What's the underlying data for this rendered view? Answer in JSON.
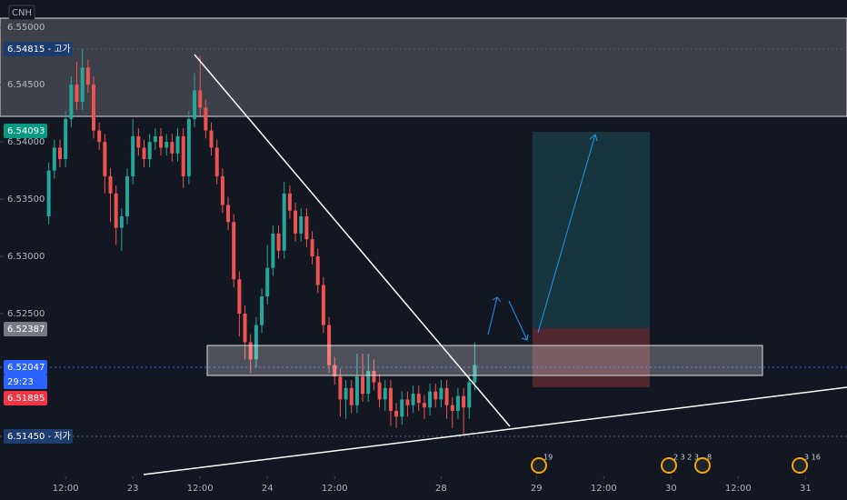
{
  "chart_data": {
    "type": "candlestick",
    "symbol": "CNH",
    "open": [
      6.5335,
      6.5375,
      6.5395,
      6.5385,
      6.542,
      6.545,
      6.5435,
      6.5465,
      6.545,
      6.541,
      6.54,
      6.537,
      6.5355,
      6.5325,
      6.5335,
      6.537,
      6.5405,
      6.5395,
      6.5385,
      6.54,
      6.5405,
      6.5395,
      6.54,
      6.539,
      6.5405,
      6.537,
      6.542,
      6.5445,
      6.543,
      6.541,
      6.5395,
      6.537,
      6.5345,
      6.533,
      6.528,
      6.525,
      6.5225,
      6.521,
      6.524,
      6.5265,
      6.529,
      6.532,
      6.5305,
      6.5355,
      6.534,
      6.532,
      6.5335,
      6.5315,
      6.53,
      6.5275,
      6.524,
      6.5205,
      6.5195,
      6.5175,
      6.5185,
      6.517,
      6.5195,
      6.518,
      6.52,
      6.519,
      6.5175,
      6.5185,
      6.5165,
      6.516,
      6.5175,
      6.517,
      6.518,
      6.5172,
      6.5168,
      6.5182,
      6.5175,
      6.5185,
      6.517,
      6.5165,
      6.5178,
      6.5168,
      6.519
    ],
    "high": [
      6.5382,
      6.5402,
      6.5402,
      6.5427,
      6.5457,
      6.547,
      6.5481,
      6.5472,
      6.5457,
      6.5417,
      6.5407,
      6.5377,
      6.5362,
      6.5342,
      6.5377,
      6.542,
      6.5412,
      6.5402,
      6.5407,
      6.5412,
      6.5412,
      6.5407,
      6.5407,
      6.5412,
      6.5412,
      6.5427,
      6.546,
      6.5475,
      6.5437,
      6.5417,
      6.5402,
      6.5377,
      6.5352,
      6.5337,
      6.5287,
      6.5257,
      6.5232,
      6.5247,
      6.5272,
      6.531,
      6.5327,
      6.5327,
      6.5365,
      6.5362,
      6.5347,
      6.5342,
      6.5342,
      6.5322,
      6.5307,
      6.5282,
      6.5247,
      6.5212,
      6.5202,
      6.5192,
      6.5192,
      6.5215,
      6.5215,
      6.5215,
      6.521,
      6.5197,
      6.5192,
      6.5192,
      6.5172,
      6.5182,
      6.5182,
      6.5187,
      6.5187,
      6.5179,
      6.5189,
      6.5189,
      6.5192,
      6.5192,
      6.5177,
      6.5185,
      6.5185,
      6.5197,
      6.5225
    ],
    "low": [
      6.5328,
      6.5368,
      6.5378,
      6.5378,
      6.5413,
      6.5428,
      6.5428,
      6.5443,
      6.5403,
      6.5393,
      6.5355,
      6.533,
      6.531,
      6.5305,
      6.5328,
      6.5363,
      6.5388,
      6.5378,
      6.5378,
      6.5393,
      6.5388,
      6.5388,
      6.5383,
      6.5383,
      6.536,
      6.5363,
      6.5413,
      6.5423,
      6.5403,
      6.5388,
      6.5363,
      6.5338,
      6.5323,
      6.5273,
      6.523,
      6.521,
      6.5198,
      6.5203,
      6.5233,
      6.5258,
      6.5283,
      6.5298,
      6.5298,
      6.5333,
      6.5313,
      6.5313,
      6.5308,
      6.5293,
      6.5268,
      6.5233,
      6.5198,
      6.5188,
      6.516,
      6.5158,
      6.5163,
      6.5163,
      6.5173,
      6.5173,
      6.5183,
      6.5168,
      6.5165,
      6.5152,
      6.515,
      6.5153,
      6.516,
      6.5163,
      6.5165,
      6.5158,
      6.5161,
      6.5168,
      6.5168,
      6.5158,
      6.515,
      6.5158,
      6.5145,
      6.5158,
      6.5183
    ],
    "close": [
      6.5375,
      6.5395,
      6.5385,
      6.542,
      6.545,
      6.5435,
      6.5465,
      6.545,
      6.541,
      6.54,
      6.537,
      6.5355,
      6.5325,
      6.5335,
      6.537,
      6.5405,
      6.5395,
      6.5385,
      6.54,
      6.5405,
      6.5395,
      6.54,
      6.539,
      6.5405,
      6.537,
      6.542,
      6.5445,
      6.543,
      6.541,
      6.5395,
      6.537,
      6.5345,
      6.533,
      6.528,
      6.525,
      6.5225,
      6.521,
      6.524,
      6.5265,
      6.529,
      6.532,
      6.5305,
      6.5355,
      6.534,
      6.532,
      6.5335,
      6.5315,
      6.53,
      6.5275,
      6.524,
      6.5205,
      6.5195,
      6.5175,
      6.5185,
      6.517,
      6.5195,
      6.518,
      6.52,
      6.519,
      6.5175,
      6.5185,
      6.5165,
      6.516,
      6.5175,
      6.517,
      6.518,
      6.5172,
      6.5168,
      6.5182,
      6.5175,
      6.5185,
      6.517,
      6.5165,
      6.5178,
      6.5168,
      6.519,
      6.5205
    ],
    "up_color": "#26a69a",
    "down_color": "#ef5350",
    "ylim": [
      6.5111,
      6.5524
    ],
    "yticks": [
      {
        "value": 6.55,
        "label": "6.55000"
      },
      {
        "value": 6.545,
        "label": "6.54500"
      },
      {
        "value": 6.54,
        "label": "6.54000"
      },
      {
        "value": 6.535,
        "label": "6.53500"
      },
      {
        "value": 6.53,
        "label": "6.53000"
      },
      {
        "value": 6.525,
        "label": "6.52500"
      }
    ],
    "xlim": [
      -8.7,
      142.4
    ],
    "xticks": [
      {
        "value": 3,
        "label": "12:00"
      },
      {
        "value": 15,
        "label": "23"
      },
      {
        "value": 27,
        "label": "12:00"
      },
      {
        "value": 39,
        "label": "24"
      },
      {
        "value": 51,
        "label": "12:00"
      },
      {
        "value": 70,
        "label": "28"
      },
      {
        "value": 87,
        "label": "29"
      },
      {
        "value": 99,
        "label": "12:00"
      },
      {
        "value": 111,
        "label": "30"
      },
      {
        "value": 123,
        "label": "12:00"
      },
      {
        "value": 135,
        "label": "31"
      }
    ],
    "price_badges": [
      {
        "text": "6.54815 - 고가",
        "color": "#1c3d6e"
      },
      {
        "text": "6.54093",
        "color": "#089981"
      },
      {
        "text": "6.52387",
        "color": "#787b86"
      },
      {
        "text": "6.52047",
        "color": "#2962ff"
      },
      {
        "text": "29:23",
        "color": "#2962ff"
      },
      {
        "text": "6.51885",
        "color": "#f23645"
      },
      {
        "text": "6.51450 - 저가",
        "color": "#1c3d6e"
      }
    ],
    "events": [
      "19",
      "2 3 2 3",
      "8",
      "3 16"
    ]
  }
}
